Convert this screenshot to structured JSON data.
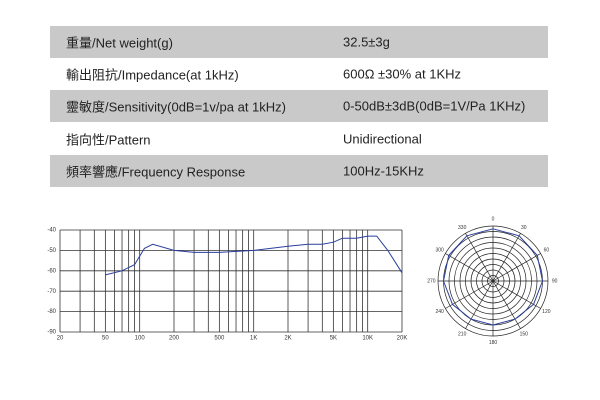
{
  "table": {
    "rows": [
      [
        "重量/Net weight(g)",
        "32.5±3g"
      ],
      [
        "輸出阻抗/Impedance(at 1kHz)",
        "600Ω ±30% at 1KHz"
      ],
      [
        "靈敏度/Sensitivity(0dB=1v/pa at 1kHz)",
        "0-50dB±3dB(0dB=1V/Pa 1KHz)"
      ],
      [
        "指向性/Pattern",
        "Unidirectional"
      ],
      [
        "頻率響應/Frequency Response",
        "100Hz-15KHz"
      ]
    ]
  },
  "chart_data": [
    {
      "type": "line",
      "color": "#2a3f9e",
      "log_x": true,
      "x": [
        50,
        70,
        90,
        110,
        130,
        200,
        300,
        500,
        1000,
        2000,
        3000,
        4000,
        5000,
        6000,
        8000,
        10000,
        12000,
        15000,
        20000
      ],
      "values": [
        -62,
        -60,
        -57,
        -49,
        -47,
        -50,
        -51,
        -51,
        -50,
        -48,
        -47,
        -47,
        -46,
        -44,
        -44,
        -43,
        -43,
        -50,
        -61
      ],
      "xlim": [
        20,
        20000
      ],
      "ylim": [
        -90,
        -40
      ],
      "xticks": [
        20,
        50,
        100,
        200,
        500,
        {
          "value": 1000,
          "label": "1K"
        },
        {
          "value": 2000,
          "label": "2K"
        },
        {
          "value": 5000,
          "label": "5K"
        },
        {
          "value": 10000,
          "label": "10K"
        },
        {
          "value": 20000,
          "label": "20K"
        }
      ],
      "xgrid": [
        20,
        30,
        40,
        50,
        60,
        70,
        80,
        90,
        100,
        200,
        300,
        400,
        500,
        600,
        700,
        800,
        900,
        1000,
        2000,
        3000,
        4000,
        5000,
        6000,
        7000,
        8000,
        9000,
        10000,
        20000
      ],
      "yticks": [
        -40,
        -50,
        -60,
        -70,
        -80,
        -90
      ],
      "grid": true
    },
    {
      "type": "polar",
      "color": "#2a3f9e",
      "theta": [
        0,
        30,
        60,
        90,
        120,
        150,
        180,
        210,
        240,
        270,
        300,
        330,
        360
      ],
      "r": [
        9.5,
        9.5,
        9.3,
        9,
        8.5,
        8,
        8,
        8,
        8.5,
        9,
        9.3,
        9.5,
        9.5
      ],
      "rlim": [
        0,
        10
      ],
      "rticks": [
        1,
        2,
        3,
        4,
        5,
        6,
        7,
        8,
        9,
        10
      ],
      "thetaticks": [
        0,
        30,
        60,
        90,
        120,
        150,
        180,
        210,
        240,
        270,
        300,
        330
      ]
    }
  ]
}
